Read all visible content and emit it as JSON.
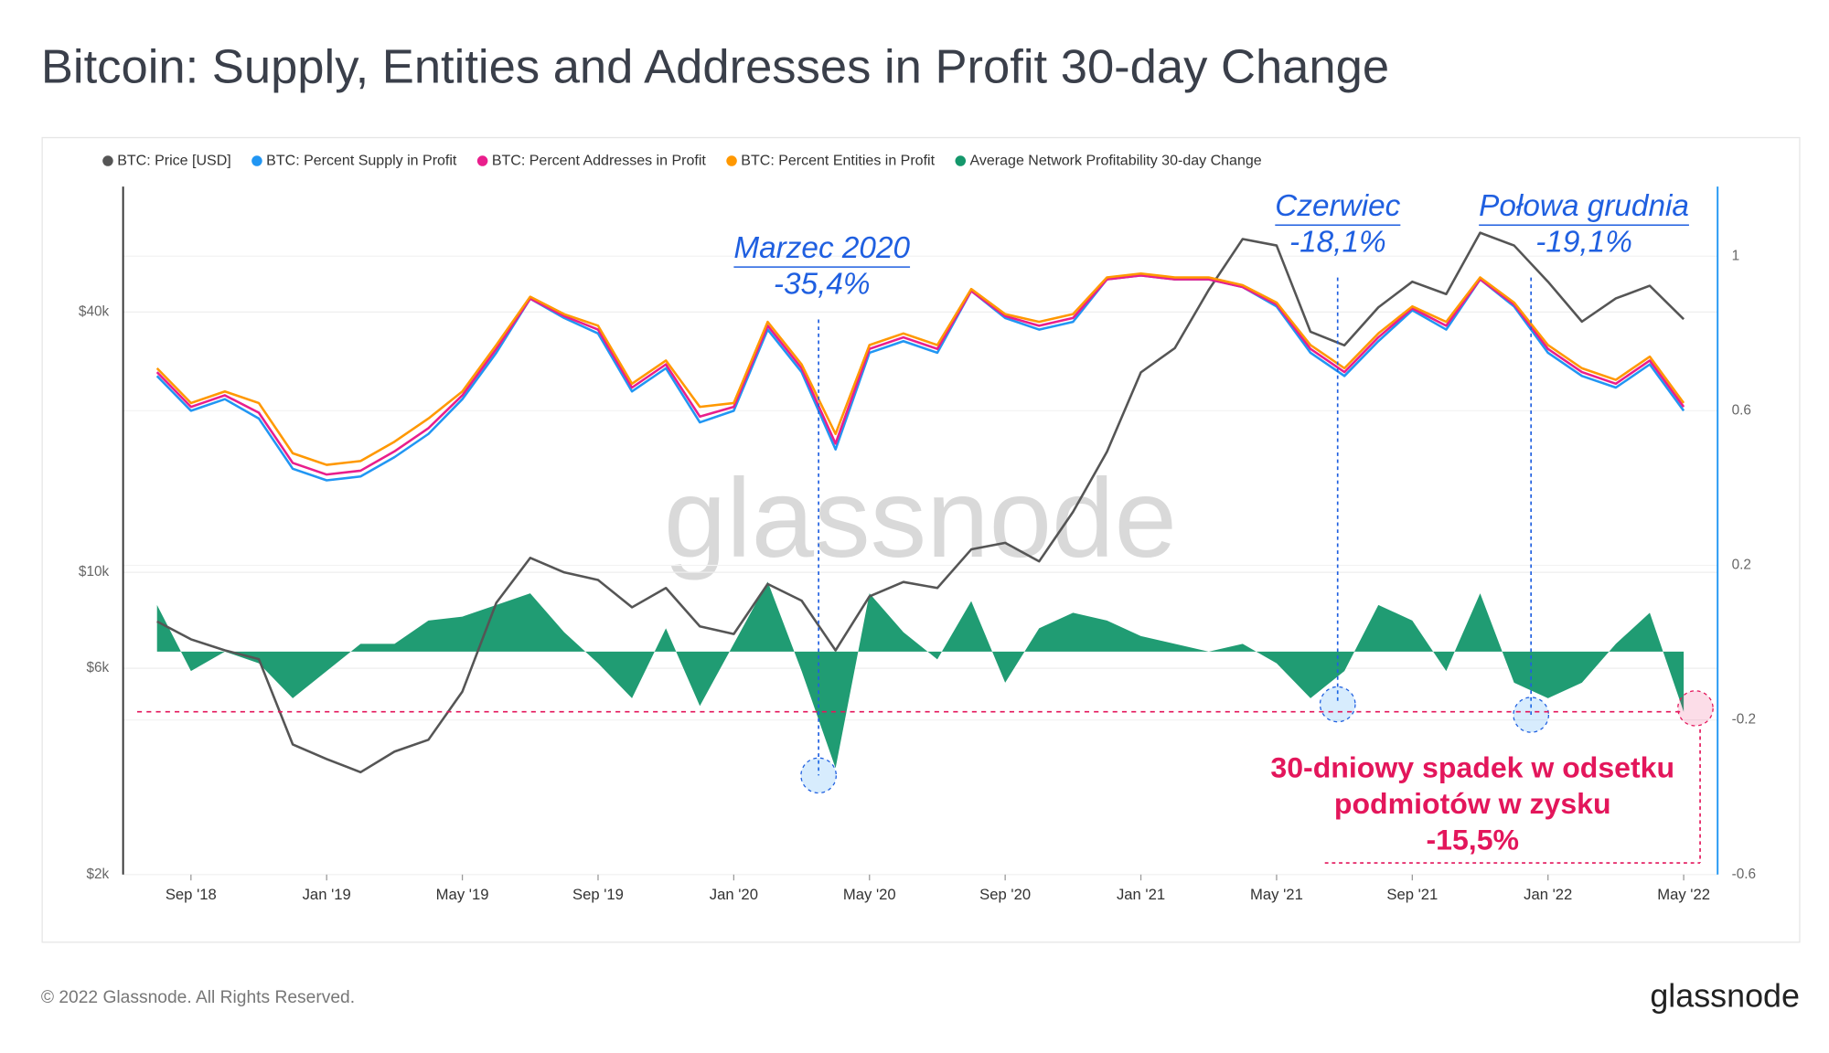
{
  "chart_data": {
    "type": "line",
    "title": "Bitcoin: Supply, Entities and Addresses in Profit 30-day Change",
    "watermark": "glassnode",
    "footer": "© 2022 Glassnode. All Rights Reserved.",
    "logo": "glassnode",
    "x": [
      "2018-08",
      "2018-09",
      "2018-10",
      "2018-11",
      "2018-12",
      "2019-01",
      "2019-02",
      "2019-03",
      "2019-04",
      "2019-05",
      "2019-06",
      "2019-07",
      "2019-08",
      "2019-09",
      "2019-10",
      "2019-11",
      "2019-12",
      "2020-01",
      "2020-02",
      "2020-03",
      "2020-04",
      "2020-05",
      "2020-06",
      "2020-07",
      "2020-08",
      "2020-09",
      "2020-10",
      "2020-11",
      "2020-12",
      "2021-01",
      "2021-02",
      "2021-03",
      "2021-04",
      "2021-05",
      "2021-06",
      "2021-07",
      "2021-08",
      "2021-09",
      "2021-10",
      "2021-11",
      "2021-12",
      "2022-01",
      "2022-02",
      "2022-03",
      "2022-04",
      "2022-05"
    ],
    "xlim": [
      "2018-07",
      "2022-06"
    ],
    "xticks": [
      {
        "value": "2018-09",
        "label": "Sep '18"
      },
      {
        "value": "2019-01",
        "label": "Jan '19"
      },
      {
        "value": "2019-05",
        "label": "May '19"
      },
      {
        "value": "2019-09",
        "label": "Sep '19"
      },
      {
        "value": "2020-01",
        "label": "Jan '20"
      },
      {
        "value": "2020-05",
        "label": "May '20"
      },
      {
        "value": "2020-09",
        "label": "Sep '20"
      },
      {
        "value": "2021-01",
        "label": "Jan '21"
      },
      {
        "value": "2021-05",
        "label": "May '21"
      },
      {
        "value": "2021-09",
        "label": "Sep '21"
      },
      {
        "value": "2022-01",
        "label": "Jan '22"
      },
      {
        "value": "2022-05",
        "label": "May '22"
      }
    ],
    "yscale": "log",
    "ylim": [
      2000,
      78000
    ],
    "yticks": [
      {
        "value": 2000,
        "label": "$2k"
      },
      {
        "value": 6000,
        "label": "$6k"
      },
      {
        "value": 10000,
        "label": "$10k"
      },
      {
        "value": 40000,
        "label": "$40k"
      }
    ],
    "y2lim": [
      -0.6,
      1.18
    ],
    "y2ticks": [
      -0.6,
      -0.2,
      0.2,
      0.6,
      1
    ],
    "y3lim": [
      -0.574,
      1.197
    ],
    "grid": true,
    "legend": "top-left",
    "series": [
      {
        "name": "BTC: Price [USD]",
        "color": "#555555",
        "axis": "y",
        "values": [
          7700,
          7000,
          6600,
          6300,
          4000,
          3700,
          3450,
          3850,
          4100,
          5300,
          8500,
          10800,
          10000,
          9600,
          8300,
          9200,
          7500,
          7200,
          9400,
          8600,
          6600,
          8800,
          9500,
          9200,
          11300,
          11700,
          10600,
          13800,
          19000,
          29000,
          33000,
          45000,
          59000,
          57000,
          36000,
          33500,
          41000,
          47000,
          44000,
          61000,
          57000,
          47000,
          38000,
          43000,
          46000,
          38500
        ]
      },
      {
        "name": "BTC: Percent Supply in Profit",
        "color": "#2196f3",
        "axis": "y2",
        "values": [
          0.69,
          0.6,
          0.63,
          0.58,
          0.45,
          0.42,
          0.43,
          0.48,
          0.54,
          0.63,
          0.75,
          0.89,
          0.84,
          0.8,
          0.65,
          0.71,
          0.57,
          0.6,
          0.81,
          0.7,
          0.5,
          0.75,
          0.78,
          0.75,
          0.91,
          0.84,
          0.81,
          0.83,
          0.94,
          0.95,
          0.94,
          0.94,
          0.92,
          0.87,
          0.75,
          0.69,
          0.78,
          0.86,
          0.81,
          0.94,
          0.87,
          0.75,
          0.69,
          0.66,
          0.72,
          0.6
        ]
      },
      {
        "name": "BTC: Percent Addresses in Profit",
        "color": "#e91e8c",
        "axis": "y2",
        "values": [
          0.7,
          0.61,
          0.64,
          0.595,
          0.465,
          0.435,
          0.445,
          0.495,
          0.555,
          0.64,
          0.76,
          0.89,
          0.845,
          0.81,
          0.66,
          0.72,
          0.585,
          0.61,
          0.82,
          0.71,
          0.515,
          0.76,
          0.79,
          0.76,
          0.91,
          0.845,
          0.82,
          0.84,
          0.94,
          0.95,
          0.94,
          0.94,
          0.92,
          0.875,
          0.76,
          0.7,
          0.79,
          0.865,
          0.82,
          0.94,
          0.875,
          0.76,
          0.7,
          0.67,
          0.73,
          0.61
        ]
      },
      {
        "name": "BTC: Percent Entities in Profit",
        "color": "#ff9800",
        "axis": "y2",
        "values": [
          0.71,
          0.62,
          0.65,
          0.62,
          0.49,
          0.46,
          0.47,
          0.52,
          0.58,
          0.65,
          0.77,
          0.895,
          0.85,
          0.82,
          0.67,
          0.73,
          0.61,
          0.62,
          0.83,
          0.72,
          0.54,
          0.77,
          0.8,
          0.77,
          0.915,
          0.85,
          0.83,
          0.85,
          0.945,
          0.955,
          0.945,
          0.945,
          0.925,
          0.88,
          0.77,
          0.71,
          0.8,
          0.87,
          0.83,
          0.945,
          0.88,
          0.77,
          0.71,
          0.68,
          0.74,
          0.62
        ]
      },
      {
        "name": "Average Network Profitability 30-day Change",
        "color": "#14976b",
        "axis": "y3",
        "values": [
          0.12,
          -0.05,
          0.0,
          -0.03,
          -0.12,
          -0.05,
          0.02,
          0.02,
          0.08,
          0.09,
          0.12,
          0.15,
          0.05,
          -0.03,
          -0.12,
          0.06,
          -0.14,
          0.02,
          0.18,
          -0.05,
          -0.3,
          0.15,
          0.05,
          -0.02,
          0.13,
          -0.08,
          0.06,
          0.1,
          0.08,
          0.04,
          0.02,
          0.0,
          0.02,
          -0.03,
          -0.12,
          -0.05,
          0.12,
          0.08,
          -0.05,
          0.15,
          -0.08,
          -0.12,
          -0.08,
          0.02,
          0.1,
          -0.155
        ]
      }
    ],
    "annotations": [
      {
        "lines": [
          "Marzec 2020",
          "-35,4%"
        ]
      },
      {
        "lines": [
          "Czerwiec",
          "-18,1%"
        ]
      },
      {
        "lines": [
          "Połowa grudnia",
          "-19,1%"
        ]
      },
      {
        "lines": [
          "30-dniowy spadek w odsetku",
          "podmiotów w zysku",
          "-15,5%"
        ]
      }
    ]
  }
}
